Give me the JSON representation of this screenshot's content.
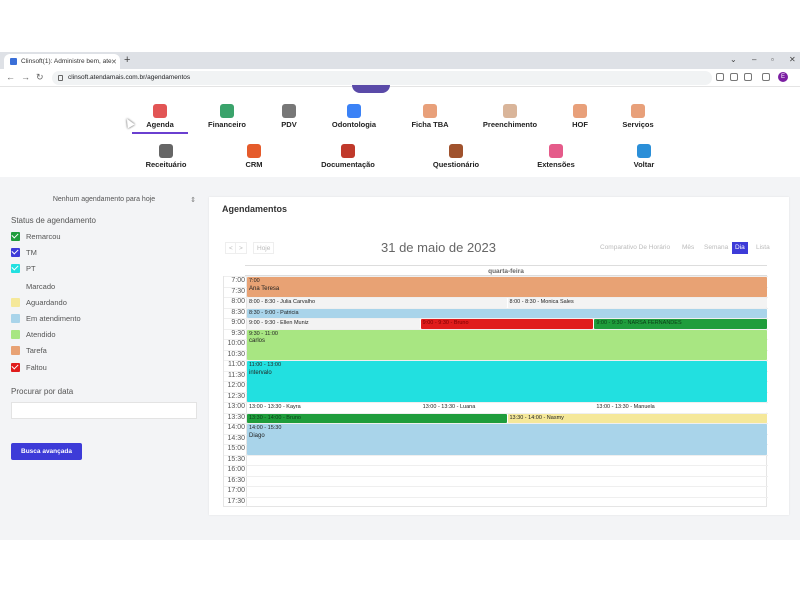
{
  "browser": {
    "tab_title": "Clinsoft(1): Administre bem, ate",
    "url": "clinsoft.atendamais.com.br/agendamentos",
    "avatar_letter": "E"
  },
  "nav_row1": [
    {
      "label": "Agenda",
      "icon": "calendar-icon",
      "color": "#e25555"
    },
    {
      "label": "Financeiro",
      "icon": "finance-icon",
      "color": "#3aa36b"
    },
    {
      "label": "PDV",
      "icon": "register-icon",
      "color": "#777777"
    },
    {
      "label": "Odontologia",
      "icon": "tooth-icon",
      "color": "#3b82f6"
    },
    {
      "label": "Ficha TBA",
      "icon": "person-icon",
      "color": "#e8a07a"
    },
    {
      "label": "Preenchimento",
      "icon": "face-icon",
      "color": "#d9b59a"
    },
    {
      "label": "HOF",
      "icon": "face-icon",
      "color": "#e8a07a"
    },
    {
      "label": "Serviços",
      "icon": "person-icon",
      "color": "#e8a07a"
    }
  ],
  "nav_row2": [
    {
      "label": "Receituário",
      "icon": "prescription-icon",
      "color": "#666666"
    },
    {
      "label": "CRM",
      "icon": "crm-icon",
      "color": "#e55b2b"
    },
    {
      "label": "Documentação",
      "icon": "docs-icon",
      "color": "#c0392b"
    },
    {
      "label": "Questionário",
      "icon": "questionnaire-icon",
      "color": "#a0522d"
    },
    {
      "label": "Extensões",
      "icon": "extensions-icon",
      "color": "#e55b8a"
    },
    {
      "label": "Voltar",
      "icon": "back-arrow-icon",
      "color": "#2b8fd8"
    }
  ],
  "sidebar": {
    "no_appointments": "Nenhum agendamento para hoje",
    "status_heading": "Status de agendamento",
    "statuses": [
      {
        "label": "Remarcou",
        "color": "#1f9d3c",
        "checked": true
      },
      {
        "label": "TM",
        "color": "#3d3bd8",
        "checked": true
      },
      {
        "label": "PT",
        "color": "#22e0e0",
        "checked": true
      },
      {
        "label": "Marcado",
        "color": "",
        "checked": false
      },
      {
        "label": "Aguardando",
        "color": "#f5e89a",
        "checked": false
      },
      {
        "label": "Em atendimento",
        "color": "#a9d4ea",
        "checked": false
      },
      {
        "label": "Atendido",
        "color": "#a8e682",
        "checked": false
      },
      {
        "label": "Tarefa",
        "color": "#e8a274",
        "checked": false
      },
      {
        "label": "Faltou",
        "color": "#e01c1c",
        "checked": true
      }
    ],
    "search_date_label": "Procurar por data",
    "advanced_search": "Busca avançada"
  },
  "calendar": {
    "card_title": "Agendamentos",
    "prev": "<",
    "next": ">",
    "today": "Hoje",
    "title": "31 de maio de 2023",
    "views": [
      "Comparativo De Horário",
      "Mês",
      "Semana",
      "Dia",
      "Lista"
    ],
    "active_view": "Dia",
    "day_header": "quarta-feira",
    "times": [
      "7:00",
      "7:30",
      "8:00",
      "8:30",
      "9:00",
      "9:30",
      "10:00",
      "10:30",
      "11:00",
      "11:30",
      "12:00",
      "12:30",
      "13:00",
      "13:30",
      "14:00",
      "14:30",
      "15:00",
      "15:30",
      "16:00",
      "16:30",
      "17:00",
      "17:30"
    ],
    "events": [
      {
        "time": "7:00",
        "name": "Ana Teresa",
        "start": 7.0,
        "end": 8.0,
        "col": 0,
        "cols": 1,
        "color": "#e8a274"
      },
      {
        "time": "8:00 - 8:30 - Julia Carvalho",
        "name": "",
        "start": 8.0,
        "end": 8.5,
        "col": 0,
        "cols": 2,
        "color": "#f3f3f3"
      },
      {
        "time": "8:00 - 8:30 - Monica Sales",
        "name": "",
        "start": 8.0,
        "end": 8.5,
        "col": 1,
        "cols": 2,
        "color": "#f3f3f3"
      },
      {
        "time": "8:30 - 9:00 - Patricia",
        "name": "",
        "start": 8.5,
        "end": 9.0,
        "col": 0,
        "cols": 1,
        "color": "#a9d4ea"
      },
      {
        "time": "9:00 - 9:30 - Ellen Muniz",
        "name": "",
        "start": 9.0,
        "end": 9.5,
        "col": 0,
        "cols": 3,
        "color": "#f3f3f3"
      },
      {
        "time": "9:00 - 9:30 - Bruno",
        "name": "",
        "start": 9.0,
        "end": 9.5,
        "col": 1,
        "cols": 3,
        "color": "#e01c1c"
      },
      {
        "time": "9:00 - 9:30 - NARSA FERNANDES",
        "name": "",
        "start": 9.0,
        "end": 9.5,
        "col": 2,
        "cols": 3,
        "color": "#1f9d3c"
      },
      {
        "time": "9:30 - 11:00",
        "name": "carlos",
        "start": 9.5,
        "end": 11.0,
        "col": 0,
        "cols": 1,
        "color": "#a8e682"
      },
      {
        "time": "11:00 - 13:00",
        "name": "intervalo",
        "start": 11.0,
        "end": 13.0,
        "col": 0,
        "cols": 1,
        "color": "#22e0e0"
      },
      {
        "time": "13:00 - 13:30 - Kayra",
        "name": "",
        "start": 13.0,
        "end": 13.5,
        "col": 0,
        "cols": 3,
        "color": "#ffffff"
      },
      {
        "time": "13:00 - 13:30 - Luana",
        "name": "",
        "start": 13.0,
        "end": 13.5,
        "col": 1,
        "cols": 3,
        "color": "#ffffff"
      },
      {
        "time": "13:00 - 13:30 - Manuela",
        "name": "",
        "start": 13.0,
        "end": 13.5,
        "col": 2,
        "cols": 3,
        "color": "#ffffff"
      },
      {
        "time": "13:30 - 14:00 - Bruno",
        "name": "",
        "start": 13.5,
        "end": 14.0,
        "col": 0,
        "cols": 2,
        "color": "#1f9d3c"
      },
      {
        "time": "13:30 - 14:00 - Nasmy",
        "name": "",
        "start": 13.5,
        "end": 14.0,
        "col": 1,
        "cols": 2,
        "color": "#f5e89a"
      },
      {
        "time": "14:00 - 15:30",
        "name": "Diago",
        "start": 14.0,
        "end": 15.5,
        "col": 0,
        "cols": 1,
        "color": "#a9d4ea"
      }
    ]
  }
}
